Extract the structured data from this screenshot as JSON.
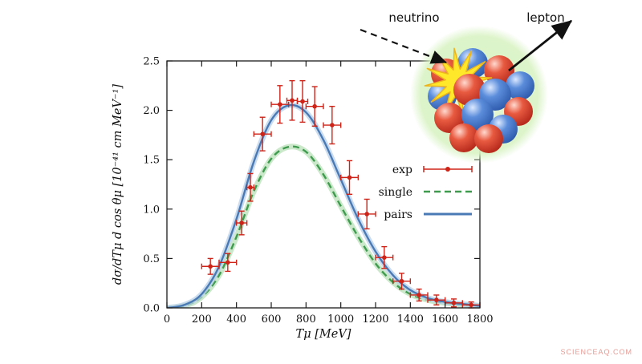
{
  "watermark": "SCIENCEAQ.COM",
  "watermark_color": "#e89b94",
  "inset": {
    "neutrino_label": "neutrino",
    "lepton_label": "lepton",
    "colors": {
      "glow": "#d9f3c4",
      "proton": "#e85a40",
      "neutron": "#5b8ddb",
      "flash": "#ffe829",
      "flash_stroke": "#edb41e",
      "arrow": "#111111"
    }
  },
  "chart_data": {
    "type": "line",
    "title": "",
    "xlabel": "Tμ [MeV]",
    "ylabel": "dσ/dTμ d cos θμ  [10⁻⁴¹ cm MeV⁻¹]",
    "xlim": [
      0,
      1800
    ],
    "ylim": [
      0,
      2.5
    ],
    "xticks": [
      0,
      200,
      400,
      600,
      800,
      1000,
      1200,
      1400,
      1600,
      1800
    ],
    "ytick_labels": [
      "0.0",
      "0.5",
      "1.0",
      "1.5",
      "2.0",
      "2.5"
    ],
    "grid": "off",
    "legend_position": "center-right",
    "legend": [
      {
        "label": "exp",
        "type": "points",
        "color": "#cf2318"
      },
      {
        "label": "single",
        "type": "dashed",
        "color": "#3f9c4e"
      },
      {
        "label": "pairs",
        "type": "solid",
        "color": "#4a7ab5"
      }
    ],
    "series": [
      {
        "name": "single",
        "style": "dashed",
        "color": "#3f9c4e",
        "band_color": "#b9e0b9",
        "x": [
          0,
          100,
          200,
          300,
          400,
          500,
          600,
          700,
          800,
          900,
          1000,
          1100,
          1200,
          1300,
          1400,
          1500,
          1600,
          1700,
          1800
        ],
        "y": [
          0,
          0.02,
          0.11,
          0.33,
          0.72,
          1.18,
          1.51,
          1.63,
          1.58,
          1.35,
          1.03,
          0.72,
          0.45,
          0.26,
          0.14,
          0.08,
          0.05,
          0.03,
          0.02
        ]
      },
      {
        "name": "pairs",
        "style": "solid",
        "color": "#4a7ab5",
        "band_color": "#b8d0e8",
        "x": [
          0,
          100,
          200,
          300,
          400,
          500,
          600,
          700,
          800,
          900,
          1000,
          1100,
          1200,
          1300,
          1400,
          1500,
          1600,
          1700,
          1800
        ],
        "y": [
          0,
          0.03,
          0.14,
          0.42,
          0.9,
          1.48,
          1.9,
          2.05,
          1.98,
          1.7,
          1.3,
          0.9,
          0.57,
          0.33,
          0.18,
          0.1,
          0.06,
          0.04,
          0.02
        ]
      }
    ],
    "exp_points": {
      "name": "exp",
      "color": "#cf2318",
      "points": [
        [
          250,
          0.42,
          50,
          0.08
        ],
        [
          350,
          0.46,
          50,
          0.09
        ],
        [
          430,
          0.86,
          30,
          0.12
        ],
        [
          480,
          1.22,
          20,
          0.14
        ],
        [
          550,
          1.76,
          50,
          0.17
        ],
        [
          650,
          2.06,
          50,
          0.19
        ],
        [
          720,
          2.1,
          30,
          0.2
        ],
        [
          780,
          2.09,
          30,
          0.21
        ],
        [
          850,
          2.04,
          50,
          0.2
        ],
        [
          950,
          1.85,
          50,
          0.19
        ],
        [
          1050,
          1.32,
          50,
          0.17
        ],
        [
          1150,
          0.95,
          50,
          0.15
        ],
        [
          1250,
          0.51,
          50,
          0.11
        ],
        [
          1350,
          0.27,
          50,
          0.08
        ],
        [
          1450,
          0.13,
          50,
          0.06
        ],
        [
          1550,
          0.08,
          50,
          0.05
        ],
        [
          1650,
          0.05,
          50,
          0.04
        ],
        [
          1750,
          0.03,
          50,
          0.03
        ]
      ]
    }
  }
}
